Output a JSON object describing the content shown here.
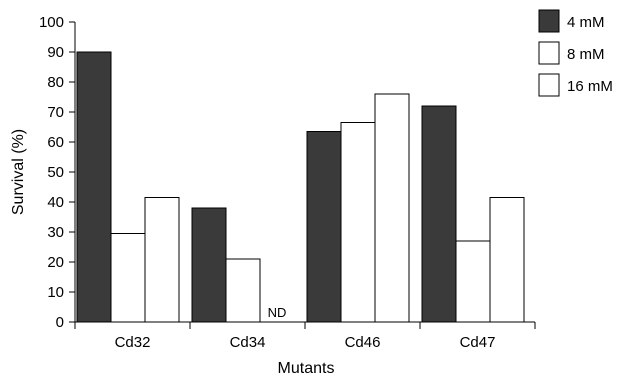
{
  "chart_data": {
    "type": "bar",
    "ylabel": "Survival (%)",
    "xlabel": "Mutants",
    "ylim": [
      0,
      100
    ],
    "ytick_step": 10,
    "categories": [
      "Cd32",
      "Cd34",
      "Cd46",
      "Cd47"
    ],
    "series": [
      {
        "name": "4 mM",
        "values": [
          90,
          38,
          63.5,
          72
        ],
        "color": "#3a3a3a"
      },
      {
        "name": "8 mM",
        "values": [
          29.5,
          21,
          null,
          27
        ],
        "color": "#ffffff"
      },
      {
        "name": "16 mM",
        "values": [
          41.5,
          null,
          76,
          41.5
        ],
        "color": "#ffffff"
      }
    ],
    "hidden_series_categories": {
      "Cd46": [
        1
      ]
    },
    "annotations": [
      {
        "category": "Cd34",
        "series": "16 mM",
        "text": "ND"
      }
    ],
    "cd46_8mM_value": 66.5,
    "legend_position": "top-right",
    "grid": false
  }
}
